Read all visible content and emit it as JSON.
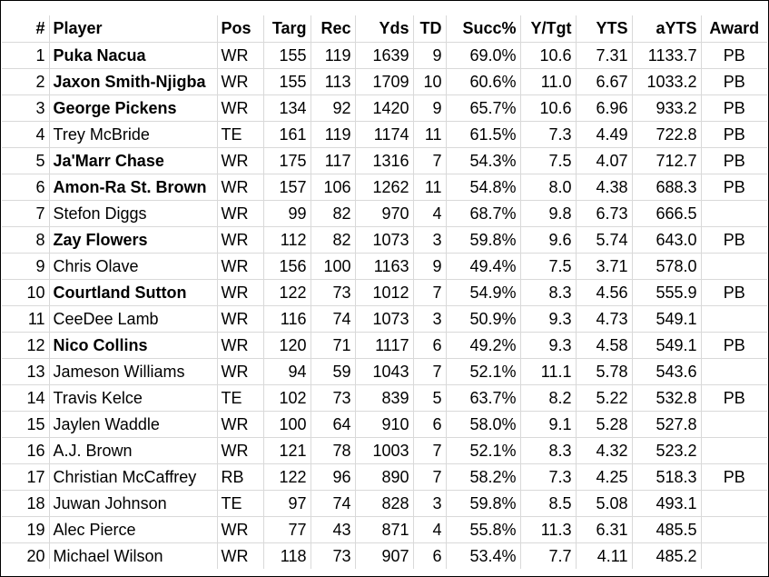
{
  "columns": [
    "#",
    "Player",
    "Pos",
    "Targ",
    "Rec",
    "Yds",
    "TD",
    "Succ%",
    "Y/Tgt",
    "YTS",
    "aYTS",
    "Award"
  ],
  "rows": [
    {
      "rank": "1",
      "player": "Puka Nacua",
      "bold": true,
      "pos": "WR",
      "targ": "155",
      "rec": "119",
      "yds": "1639",
      "td": "9",
      "succ": "69.0%",
      "ytgt": "10.6",
      "yts": "7.31",
      "ayts": "1133.7",
      "award": "PB"
    },
    {
      "rank": "2",
      "player": "Jaxon Smith-Njigba",
      "bold": true,
      "pos": "WR",
      "targ": "155",
      "rec": "113",
      "yds": "1709",
      "td": "10",
      "succ": "60.6%",
      "ytgt": "11.0",
      "yts": "6.67",
      "ayts": "1033.2",
      "award": "PB"
    },
    {
      "rank": "3",
      "player": "George Pickens",
      "bold": true,
      "pos": "WR",
      "targ": "134",
      "rec": "92",
      "yds": "1420",
      "td": "9",
      "succ": "65.7%",
      "ytgt": "10.6",
      "yts": "6.96",
      "ayts": "933.2",
      "award": "PB"
    },
    {
      "rank": "4",
      "player": "Trey McBride",
      "bold": false,
      "pos": "TE",
      "targ": "161",
      "rec": "119",
      "yds": "1174",
      "td": "11",
      "succ": "61.5%",
      "ytgt": "7.3",
      "yts": "4.49",
      "ayts": "722.8",
      "award": "PB"
    },
    {
      "rank": "5",
      "player": "Ja'Marr Chase",
      "bold": true,
      "pos": "WR",
      "targ": "175",
      "rec": "117",
      "yds": "1316",
      "td": "7",
      "succ": "54.3%",
      "ytgt": "7.5",
      "yts": "4.07",
      "ayts": "712.7",
      "award": "PB"
    },
    {
      "rank": "6",
      "player": "Amon-Ra St. Brown",
      "bold": true,
      "pos": "WR",
      "targ": "157",
      "rec": "106",
      "yds": "1262",
      "td": "11",
      "succ": "54.8%",
      "ytgt": "8.0",
      "yts": "4.38",
      "ayts": "688.3",
      "award": "PB"
    },
    {
      "rank": "7",
      "player": "Stefon Diggs",
      "bold": false,
      "pos": "WR",
      "targ": "99",
      "rec": "82",
      "yds": "970",
      "td": "4",
      "succ": "68.7%",
      "ytgt": "9.8",
      "yts": "6.73",
      "ayts": "666.5",
      "award": ""
    },
    {
      "rank": "8",
      "player": "Zay Flowers",
      "bold": true,
      "pos": "WR",
      "targ": "112",
      "rec": "82",
      "yds": "1073",
      "td": "3",
      "succ": "59.8%",
      "ytgt": "9.6",
      "yts": "5.74",
      "ayts": "643.0",
      "award": "PB"
    },
    {
      "rank": "9",
      "player": "Chris Olave",
      "bold": false,
      "pos": "WR",
      "targ": "156",
      "rec": "100",
      "yds": "1163",
      "td": "9",
      "succ": "49.4%",
      "ytgt": "7.5",
      "yts": "3.71",
      "ayts": "578.0",
      "award": ""
    },
    {
      "rank": "10",
      "player": "Courtland Sutton",
      "bold": true,
      "pos": "WR",
      "targ": "122",
      "rec": "73",
      "yds": "1012",
      "td": "7",
      "succ": "54.9%",
      "ytgt": "8.3",
      "yts": "4.56",
      "ayts": "555.9",
      "award": "PB"
    },
    {
      "rank": "11",
      "player": "CeeDee Lamb",
      "bold": false,
      "pos": "WR",
      "targ": "116",
      "rec": "74",
      "yds": "1073",
      "td": "3",
      "succ": "50.9%",
      "ytgt": "9.3",
      "yts": "4.73",
      "ayts": "549.1",
      "award": ""
    },
    {
      "rank": "12",
      "player": "Nico Collins",
      "bold": true,
      "pos": "WR",
      "targ": "120",
      "rec": "71",
      "yds": "1117",
      "td": "6",
      "succ": "49.2%",
      "ytgt": "9.3",
      "yts": "4.58",
      "ayts": "549.1",
      "award": "PB"
    },
    {
      "rank": "13",
      "player": "Jameson Williams",
      "bold": false,
      "pos": "WR",
      "targ": "94",
      "rec": "59",
      "yds": "1043",
      "td": "7",
      "succ": "52.1%",
      "ytgt": "11.1",
      "yts": "5.78",
      "ayts": "543.6",
      "award": ""
    },
    {
      "rank": "14",
      "player": "Travis Kelce",
      "bold": false,
      "pos": "TE",
      "targ": "102",
      "rec": "73",
      "yds": "839",
      "td": "5",
      "succ": "63.7%",
      "ytgt": "8.2",
      "yts": "5.22",
      "ayts": "532.8",
      "award": "PB"
    },
    {
      "rank": "15",
      "player": "Jaylen Waddle",
      "bold": false,
      "pos": "WR",
      "targ": "100",
      "rec": "64",
      "yds": "910",
      "td": "6",
      "succ": "58.0%",
      "ytgt": "9.1",
      "yts": "5.28",
      "ayts": "527.8",
      "award": ""
    },
    {
      "rank": "16",
      "player": "A.J. Brown",
      "bold": false,
      "pos": "WR",
      "targ": "121",
      "rec": "78",
      "yds": "1003",
      "td": "7",
      "succ": "52.1%",
      "ytgt": "8.3",
      "yts": "4.32",
      "ayts": "523.2",
      "award": ""
    },
    {
      "rank": "17",
      "player": "Christian McCaffrey",
      "bold": false,
      "pos": "RB",
      "targ": "122",
      "rec": "96",
      "yds": "890",
      "td": "7",
      "succ": "58.2%",
      "ytgt": "7.3",
      "yts": "4.25",
      "ayts": "518.3",
      "award": "PB"
    },
    {
      "rank": "18",
      "player": "Juwan Johnson",
      "bold": false,
      "pos": "TE",
      "targ": "97",
      "rec": "74",
      "yds": "828",
      "td": "3",
      "succ": "59.8%",
      "ytgt": "8.5",
      "yts": "5.08",
      "ayts": "493.1",
      "award": ""
    },
    {
      "rank": "19",
      "player": "Alec Pierce",
      "bold": false,
      "pos": "WR",
      "targ": "77",
      "rec": "43",
      "yds": "871",
      "td": "4",
      "succ": "55.8%",
      "ytgt": "11.3",
      "yts": "6.31",
      "ayts": "485.5",
      "award": ""
    },
    {
      "rank": "20",
      "player": "Michael Wilson",
      "bold": false,
      "pos": "WR",
      "targ": "118",
      "rec": "73",
      "yds": "907",
      "td": "6",
      "succ": "53.4%",
      "ytgt": "7.7",
      "yts": "4.11",
      "ayts": "485.2",
      "award": ""
    }
  ]
}
